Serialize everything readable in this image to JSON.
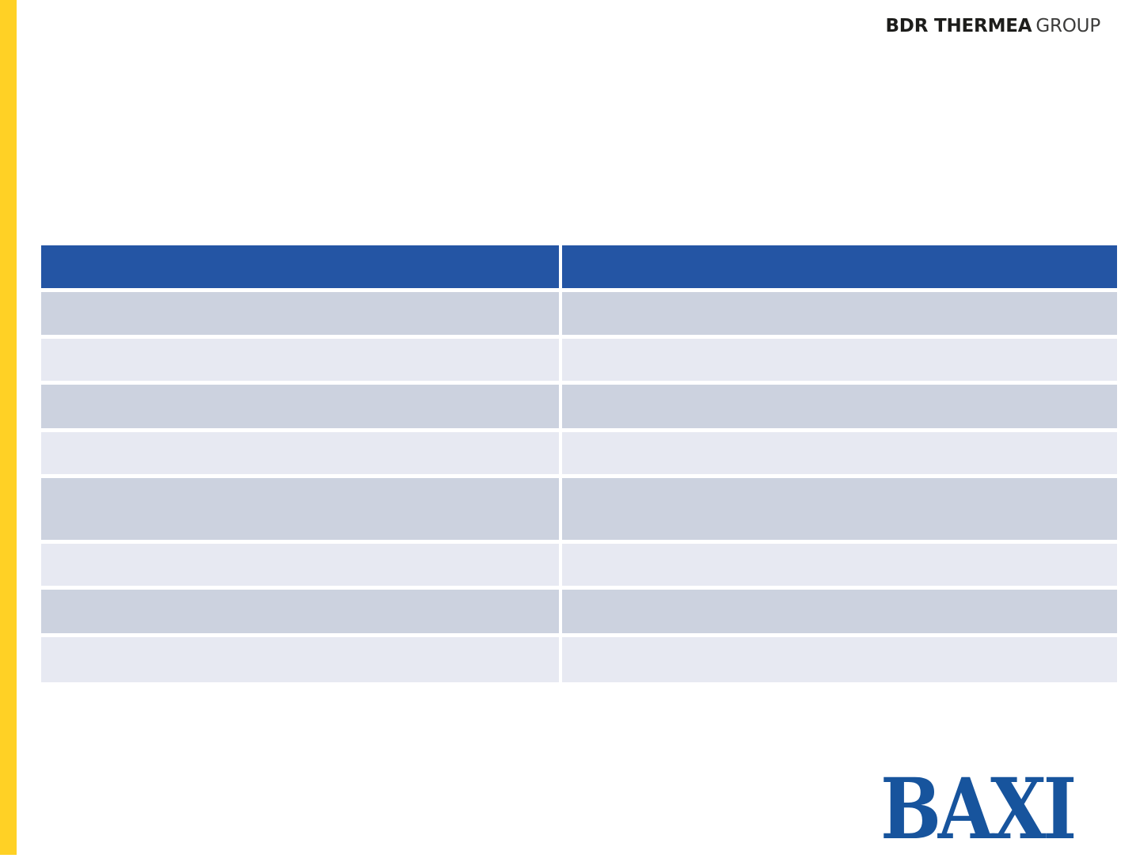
{
  "branding": {
    "bdr_bold": "BDR THERMEA",
    "bdr_light": "GROUP",
    "baxi": "BAXI"
  },
  "colors": {
    "yellow": "#FFD125",
    "header_blue": "#2455A4",
    "row_dark": "#CCD2DF",
    "row_light": "#E7E9F2",
    "baxi_blue": "#17549D",
    "bdr_text": "#1D1D1B",
    "slide_bg": "#FFFFFF"
  },
  "table": {
    "columns": [
      "",
      ""
    ],
    "rows": [
      [
        "",
        ""
      ],
      [
        "",
        ""
      ],
      [
        "",
        ""
      ],
      [
        "",
        ""
      ],
      [
        "",
        ""
      ],
      [
        "",
        ""
      ],
      [
        "",
        ""
      ],
      [
        "",
        ""
      ]
    ]
  }
}
